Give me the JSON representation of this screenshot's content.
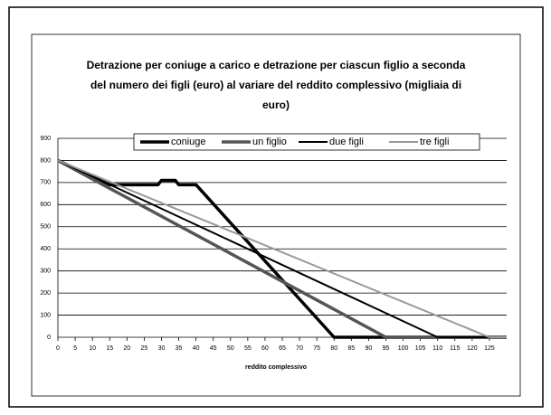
{
  "chart_data": {
    "type": "line",
    "title_lines": [
      "Detrazione per coniuge a carico e detrazione per ciascun figlio a seconda",
      "del numero dei figli (euro) al variare del reddito complessivo (migliaia di",
      "euro)"
    ],
    "x_label": "reddito complessivo",
    "xlim": [
      0,
      130
    ],
    "xticks": [
      0,
      5,
      10,
      15,
      20,
      25,
      30,
      35,
      40,
      45,
      50,
      55,
      60,
      65,
      70,
      75,
      80,
      85,
      90,
      95,
      100,
      105,
      110,
      115,
      120,
      125
    ],
    "ylim": [
      0,
      900
    ],
    "yticks": [
      0,
      100,
      200,
      300,
      400,
      500,
      600,
      700,
      800,
      900
    ],
    "grid": true,
    "legend": "top",
    "series": [
      {
        "name": "coniuge",
        "color": "#000000",
        "width": 3.5,
        "x": [
          0,
          15,
          29,
          30,
          34,
          35,
          40,
          80,
          130
        ],
        "values": [
          800,
          690,
          690,
          710,
          710,
          690,
          690,
          0,
          0
        ]
      },
      {
        "name": "un figlio",
        "color": "#555555",
        "width": 3.5,
        "x": [
          0,
          95,
          130
        ],
        "values": [
          800,
          0,
          0
        ]
      },
      {
        "name": "due figli",
        "color": "#000000",
        "width": 2,
        "x": [
          0,
          110,
          130
        ],
        "values": [
          800,
          0,
          0
        ]
      },
      {
        "name": "tre figli",
        "color": "#999999",
        "width": 2,
        "x": [
          0,
          125,
          130
        ],
        "values": [
          800,
          0,
          0
        ]
      }
    ]
  }
}
